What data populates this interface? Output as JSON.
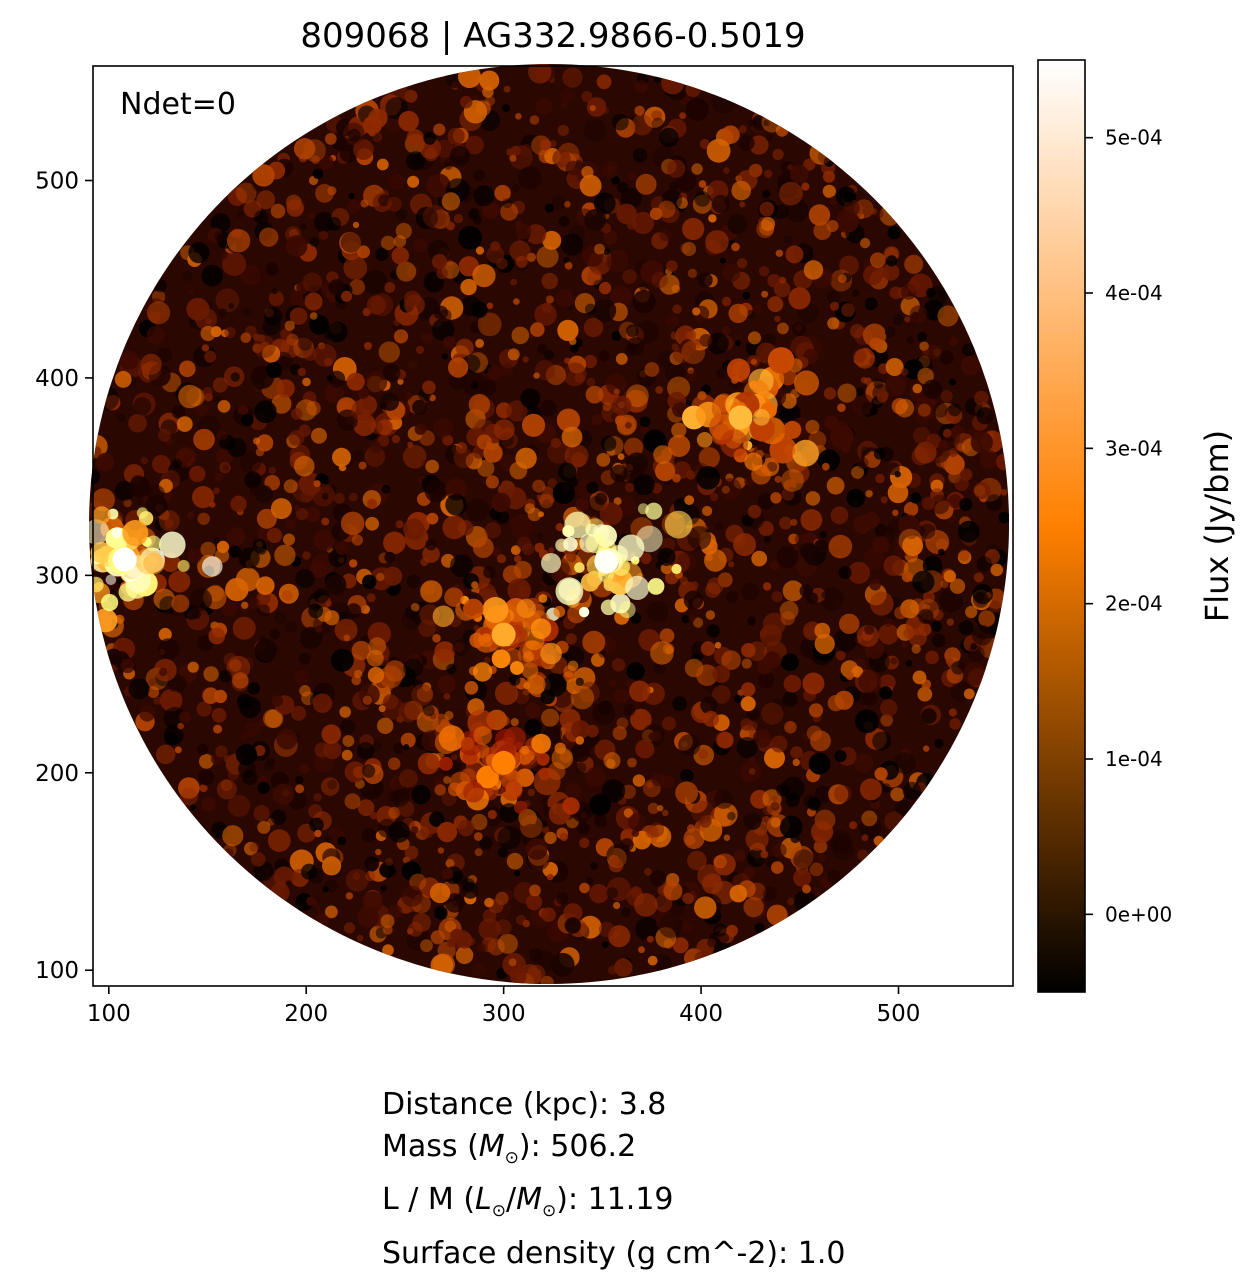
{
  "title": "809068 | AG332.9866-0.5019",
  "annotation": "Ndet=0",
  "colorbar_label": "Flux (Jy/bm)",
  "info": {
    "distance": {
      "label": "Distance (kpc): ",
      "value": "3.8"
    },
    "mass": {
      "label_pre": "Mass (",
      "symbol": "M",
      "sub": "⊙",
      "label_post": "): ",
      "value": "506.2"
    },
    "lm": {
      "label_pre": "L / M (",
      "l_symbol": "L",
      "l_sub": "⊙",
      "slash": "/",
      "m_symbol": "M",
      "m_sub": "⊙",
      "label_post": "): ",
      "value": "11.19"
    },
    "surface_density": {
      "label": "Surface density (g cm^-2): ",
      "value": "1.0"
    }
  },
  "chart_data": {
    "type": "heatmap",
    "colormap": "afmhot",
    "xlim": [
      92,
      558
    ],
    "ylim": [
      92,
      558
    ],
    "x_ticks": [
      100,
      200,
      300,
      400,
      500
    ],
    "y_ticks": [
      100,
      200,
      300,
      400,
      500
    ],
    "x_tick_labels": [
      "100",
      "200",
      "300",
      "400",
      "500"
    ],
    "y_tick_labels": [
      "100",
      "200",
      "300",
      "400",
      "500"
    ],
    "aperture": {
      "center_x": 323,
      "center_y": 326,
      "radius": 233
    },
    "colorbar": {
      "vmin": -5e-05,
      "vmax": 0.00055,
      "ticks": [
        0,
        0.0001,
        0.0002,
        0.0003,
        0.0004,
        0.0005
      ],
      "tick_labels": [
        "0e+00",
        "1e-04",
        "2e-04",
        "3e-04",
        "4e-04",
        "5e-04"
      ]
    },
    "bright_regions": [
      {
        "x": 352,
        "y": 307,
        "peak": 0.00054
      },
      {
        "x": 108,
        "y": 308,
        "peak": 0.00055
      },
      {
        "x": 420,
        "y": 380,
        "peak": 0.00032
      },
      {
        "x": 300,
        "y": 270,
        "peak": 0.0003
      },
      {
        "x": 300,
        "y": 205,
        "peak": 0.00025
      }
    ]
  }
}
